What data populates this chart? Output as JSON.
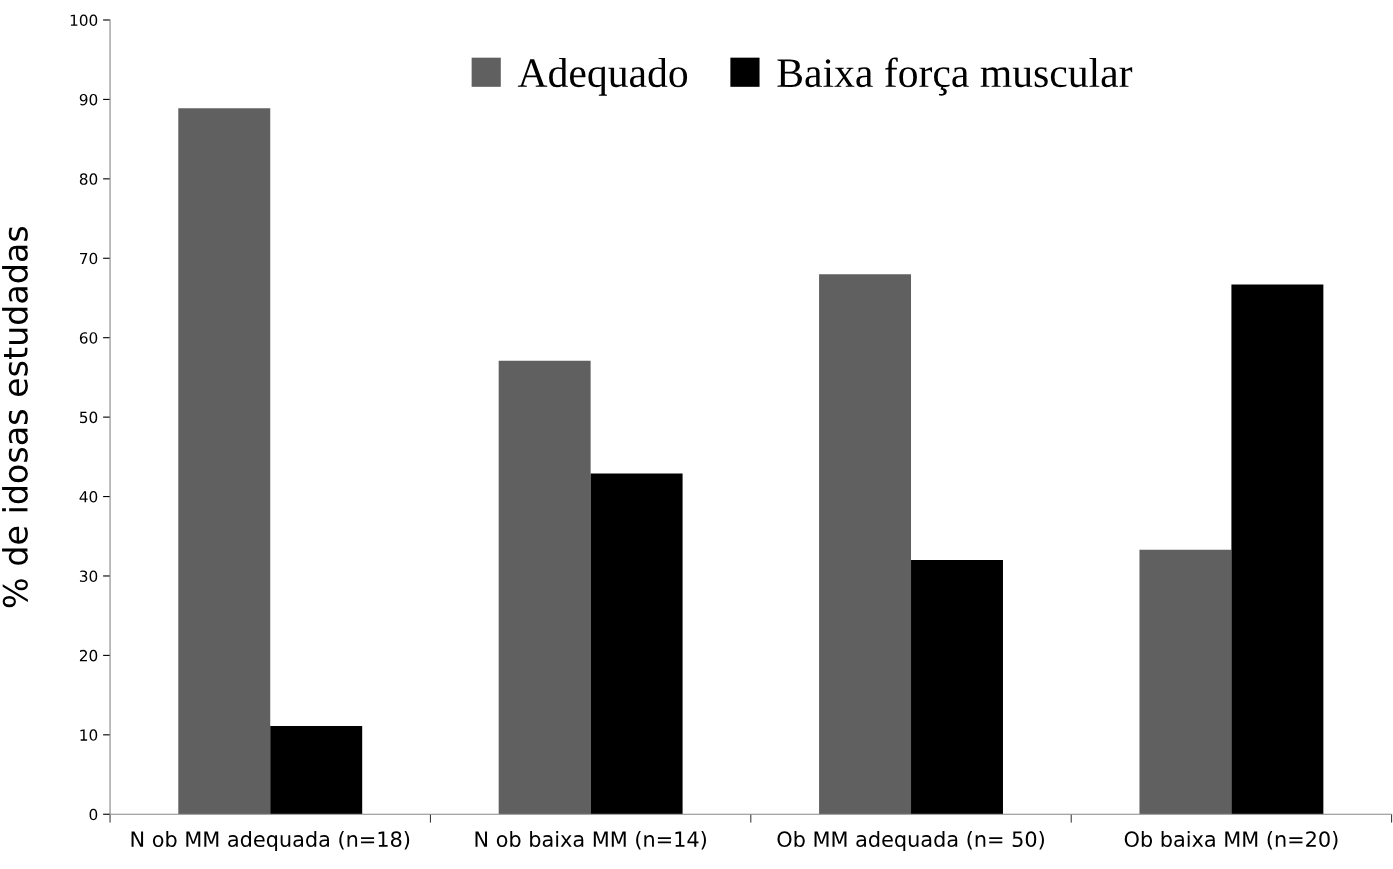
{
  "chart_data": {
    "type": "bar",
    "ylabel": "% de idosas estudadas",
    "categories": [
      "N ob MM adequada (n=18)",
      "N ob baixa MM (n=14)",
      "Ob MM adequada (n= 50)",
      "Ob baixa MM (n=20)"
    ],
    "series": [
      {
        "name": "Adequado",
        "color": "#606060",
        "values": [
          88.9,
          57.1,
          68.0,
          33.3
        ]
      },
      {
        "name": "Baixa força muscular",
        "color": "#000000",
        "values": [
          11.1,
          42.9,
          32.0,
          66.7
        ]
      }
    ],
    "ylim": [
      0,
      100
    ],
    "yticks": [
      0,
      10,
      20,
      30,
      40,
      50,
      60,
      70,
      80,
      90,
      100
    ],
    "grid": false,
    "legend": "top"
  }
}
